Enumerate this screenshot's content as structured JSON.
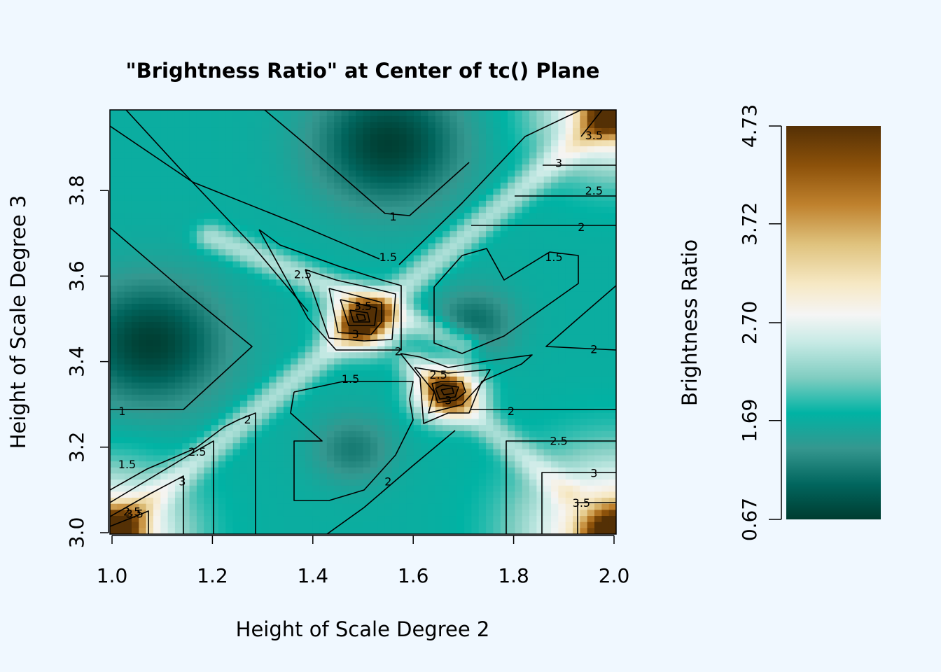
{
  "chart_data": {
    "type": "heatmap",
    "title": "\"Brightness Ratio\" at Center of tc() Plane",
    "xlabel": "Height of Scale Degree 2",
    "ylabel": "Height of Scale Degree 3",
    "xlim": [
      1.0,
      2.0
    ],
    "ylim": [
      3.0,
      4.0
    ],
    "x_ticks": [
      "1.0",
      "1.2",
      "1.4",
      "1.6",
      "1.8",
      "2.0"
    ],
    "y_ticks": [
      "3.0",
      "3.2",
      "3.4",
      "3.6",
      "3.8"
    ],
    "grid": false,
    "colorbar": {
      "label": "Brightness Ratio",
      "placement": "right",
      "min": 0.67,
      "max": 4.73,
      "ticks": [
        "0.67",
        "1.69",
        "2.70",
        "3.72",
        "4.73"
      ],
      "colors": [
        "#003c30",
        "#01665e",
        "#35978f",
        "#00b3a4",
        "#80cdc1",
        "#c7eae5",
        "#f5f5f5",
        "#f6e8c3",
        "#dfc27d",
        "#bf812d",
        "#8c510a",
        "#543005"
      ]
    },
    "contour_levels": [
      1,
      1.5,
      2,
      2.5,
      3,
      3.5,
      4,
      4.5
    ],
    "peaks": [
      {
        "x": 1.5,
        "y": 3.5,
        "value": 4.7
      },
      {
        "x": 1.667,
        "y": 3.333,
        "value": 4.5
      },
      {
        "x": 2.0,
        "y": 4.0,
        "value": 3.9
      },
      {
        "x": 1.0,
        "y": 3.0,
        "value": 3.9
      },
      {
        "x": 2.0,
        "y": 3.0,
        "value": 4.0
      }
    ],
    "contour_labels": [
      {
        "text": "1",
        "x": 1.56,
        "y": 3.74
      },
      {
        "text": "1",
        "x": 1.02,
        "y": 3.285
      },
      {
        "text": "1.5",
        "x": 1.55,
        "y": 3.645
      },
      {
        "text": "1.5",
        "x": 1.88,
        "y": 3.645
      },
      {
        "text": "1.5",
        "x": 1.475,
        "y": 3.36
      },
      {
        "text": "1.5",
        "x": 1.03,
        "y": 3.16
      },
      {
        "text": "2",
        "x": 1.57,
        "y": 3.425
      },
      {
        "text": "2",
        "x": 1.96,
        "y": 3.43
      },
      {
        "text": "2",
        "x": 1.795,
        "y": 3.285
      },
      {
        "text": "2",
        "x": 1.935,
        "y": 3.715
      },
      {
        "text": "2",
        "x": 1.27,
        "y": 3.265
      },
      {
        "text": "2",
        "x": 1.55,
        "y": 3.12
      },
      {
        "text": "2.5",
        "x": 1.38,
        "y": 3.605
      },
      {
        "text": "2.5",
        "x": 1.65,
        "y": 3.37
      },
      {
        "text": "2.5",
        "x": 1.96,
        "y": 3.8
      },
      {
        "text": "2.5",
        "x": 1.89,
        "y": 3.215
      },
      {
        "text": "2.5",
        "x": 1.17,
        "y": 3.19
      },
      {
        "text": "2.5",
        "x": 1.04,
        "y": 3.05
      },
      {
        "text": "3",
        "x": 1.485,
        "y": 3.465
      },
      {
        "text": "3",
        "x": 1.67,
        "y": 3.31
      },
      {
        "text": "3",
        "x": 1.89,
        "y": 3.865
      },
      {
        "text": "3",
        "x": 1.96,
        "y": 3.14
      },
      {
        "text": "3",
        "x": 1.14,
        "y": 3.12
      },
      {
        "text": "3.5",
        "x": 1.5,
        "y": 3.53
      },
      {
        "text": "3.5",
        "x": 1.96,
        "y": 3.93
      },
      {
        "text": "3.5",
        "x": 1.935,
        "y": 3.07
      },
      {
        "text": "3.5",
        "x": 1.045,
        "y": 3.045
      }
    ]
  }
}
